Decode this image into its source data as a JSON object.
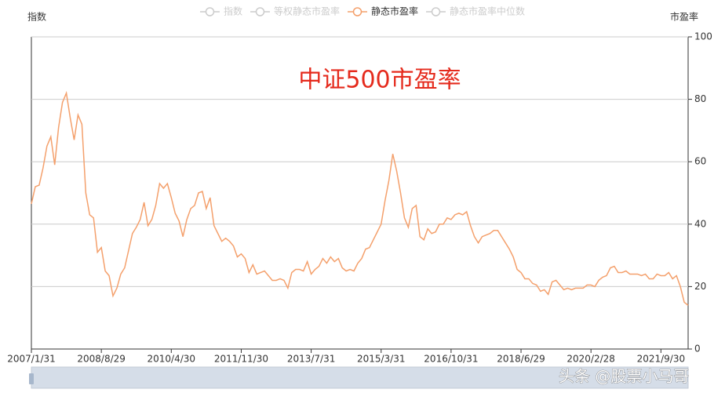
{
  "chart_data": {
    "type": "line",
    "annotation": "中证500市盈率",
    "annotation_color": "#e52a1c",
    "left_axis_label": "指数",
    "ylabel": "市盈率",
    "watermark": "头条 @股票小马哥",
    "ylim": [
      0,
      100
    ],
    "yticks": [
      0,
      20,
      40,
      60,
      80,
      100
    ],
    "grid": true,
    "legend_position": "top",
    "categories": [
      "2007/1/31",
      null,
      null,
      null,
      null,
      null,
      null,
      null,
      null,
      null,
      null,
      null,
      null,
      null,
      null,
      null,
      null,
      null,
      "2008/8/29",
      null,
      null,
      null,
      null,
      null,
      null,
      null,
      null,
      null,
      null,
      null,
      null,
      null,
      null,
      null,
      null,
      null,
      "2010/4/30",
      null,
      null,
      null,
      null,
      null,
      null,
      null,
      null,
      null,
      null,
      null,
      null,
      null,
      null,
      null,
      null,
      null,
      "2011/11/30",
      null,
      null,
      null,
      null,
      null,
      null,
      null,
      null,
      null,
      null,
      null,
      null,
      null,
      null,
      null,
      null,
      null,
      "2013/7/31",
      null,
      null,
      null,
      null,
      null,
      null,
      null,
      null,
      null,
      null,
      null,
      null,
      null,
      null,
      null,
      null,
      null,
      "2015/3/31",
      null,
      null,
      null,
      null,
      null,
      null,
      null,
      null,
      null,
      null,
      null,
      null,
      null,
      null,
      null,
      null,
      null,
      "2016/10/31",
      null,
      null,
      null,
      null,
      null,
      null,
      null,
      null,
      null,
      null,
      null,
      null,
      null,
      null,
      null,
      null,
      null,
      "2018/6/29",
      null,
      null,
      null,
      null,
      null,
      null,
      null,
      null,
      null,
      null,
      null,
      null,
      null,
      null,
      null,
      null,
      null,
      "2020/2/28",
      null,
      null,
      null,
      null,
      null,
      null,
      null,
      null,
      null,
      null,
      null,
      null,
      null,
      null,
      null,
      null,
      null,
      "2021/9/30",
      null,
      null,
      null,
      null,
      null,
      null,
      null
    ],
    "series": [
      {
        "name": "指数",
        "visible": false,
        "color": "#cccccc"
      },
      {
        "name": "等权静态市盈率",
        "visible": false,
        "color": "#cccccc"
      },
      {
        "name": "静态市盈率",
        "visible": true,
        "color": "#f4a06c",
        "values": [
          46.5,
          52,
          52.5,
          58,
          65,
          68,
          59,
          71,
          79,
          82,
          74,
          67,
          75,
          72,
          50,
          43,
          42,
          31,
          32.5,
          25,
          23.5,
          17,
          19.5,
          24,
          26,
          31.5,
          37,
          39,
          41.5,
          47,
          39.5,
          41.5,
          46,
          53,
          51.5,
          53,
          48.5,
          43.5,
          41,
          36,
          41.5,
          45,
          46,
          50,
          50.5,
          45,
          48.5,
          39.5,
          37,
          34.5,
          35.5,
          34.5,
          33,
          29.5,
          30.5,
          29,
          24.5,
          27,
          24,
          24.5,
          25,
          23.5,
          22,
          22,
          22.5,
          22,
          19.5,
          24.5,
          25.5,
          25.5,
          25,
          28,
          24,
          25.5,
          26.5,
          29,
          27.5,
          29.5,
          28,
          29,
          26,
          25,
          25.5,
          25,
          27.5,
          29,
          32,
          32.5,
          35,
          37.5,
          40,
          47.5,
          54,
          62.5,
          57,
          50,
          42,
          39,
          45,
          46,
          36,
          35,
          38.5,
          37,
          37.5,
          40,
          40,
          42,
          41.5,
          43,
          43.5,
          43,
          44,
          39.5,
          36,
          34,
          36,
          36.5,
          37,
          38,
          38,
          36,
          34,
          32,
          29.5,
          25.5,
          24.5,
          22.5,
          22.5,
          21,
          20.5,
          18.5,
          19,
          17.5,
          21.5,
          22,
          20.5,
          19,
          19.5,
          19,
          19.5,
          19.5,
          19.5,
          20.5,
          20.5,
          20,
          22,
          23,
          23.5,
          26,
          26.5,
          24.5,
          24.5,
          25,
          24,
          24,
          24,
          23.5,
          24,
          22.5,
          22.5,
          24,
          23.5,
          23.5,
          24.5,
          22.5,
          23.5,
          20,
          15,
          14
        ]
      },
      {
        "name": "静态市盈率中位数",
        "visible": false,
        "color": "#cccccc"
      }
    ]
  }
}
